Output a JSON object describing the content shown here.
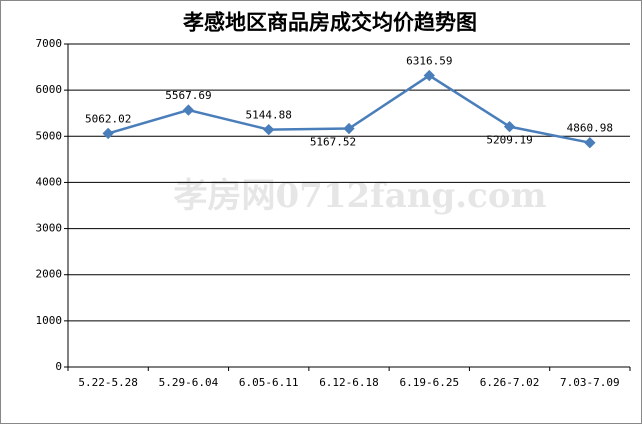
{
  "chart_data": {
    "type": "line",
    "title": "孝感地区商品房成交均价趋势图",
    "watermark": "孝房网0712fang.com",
    "categories": [
      "5.22-5.28",
      "5.29-6.04",
      "6.05-6.11",
      "6.12-6.18",
      "6.19-6.25",
      "6.26-7.02",
      "7.03-7.09"
    ],
    "values": [
      5062.02,
      5567.69,
      5144.88,
      5167.52,
      6316.59,
      5209.19,
      4860.98
    ],
    "color": "#4a7ebb",
    "ylim": [
      0,
      7000
    ],
    "yticks": [
      0,
      1000,
      2000,
      3000,
      4000,
      5000,
      6000,
      7000
    ],
    "grid": true
  }
}
